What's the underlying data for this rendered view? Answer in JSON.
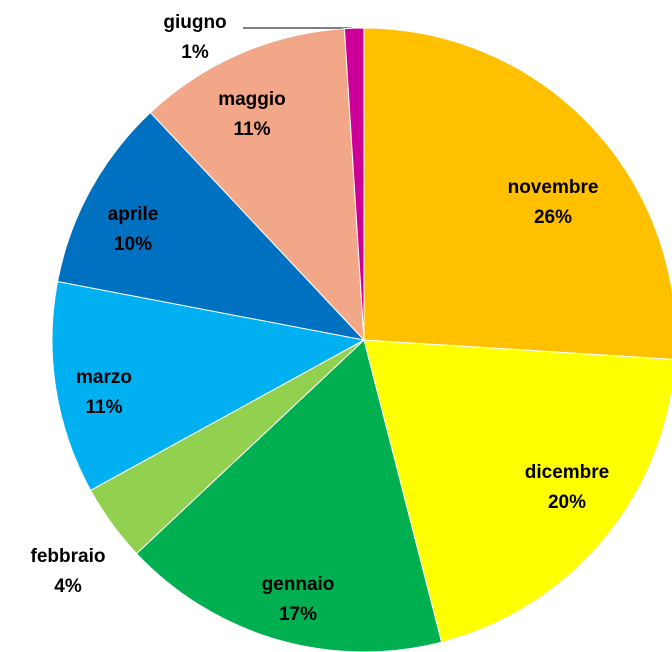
{
  "chart_data": {
    "type": "pie",
    "categories": [
      "novembre",
      "dicembre",
      "gennaio",
      "febbraio",
      "marzo",
      "aprile",
      "maggio",
      "giugno"
    ],
    "values": [
      26,
      20,
      17,
      4,
      11,
      10,
      11,
      1
    ],
    "value_labels": [
      "26%",
      "20%",
      "17%",
      "4%",
      "11%",
      "10%",
      "11%",
      "1%"
    ],
    "colors": [
      "#FFC000",
      "#FFFF00",
      "#00B050",
      "#92D050",
      "#00B0F0",
      "#0070C0",
      "#F2A888",
      "#CC0099"
    ]
  }
}
